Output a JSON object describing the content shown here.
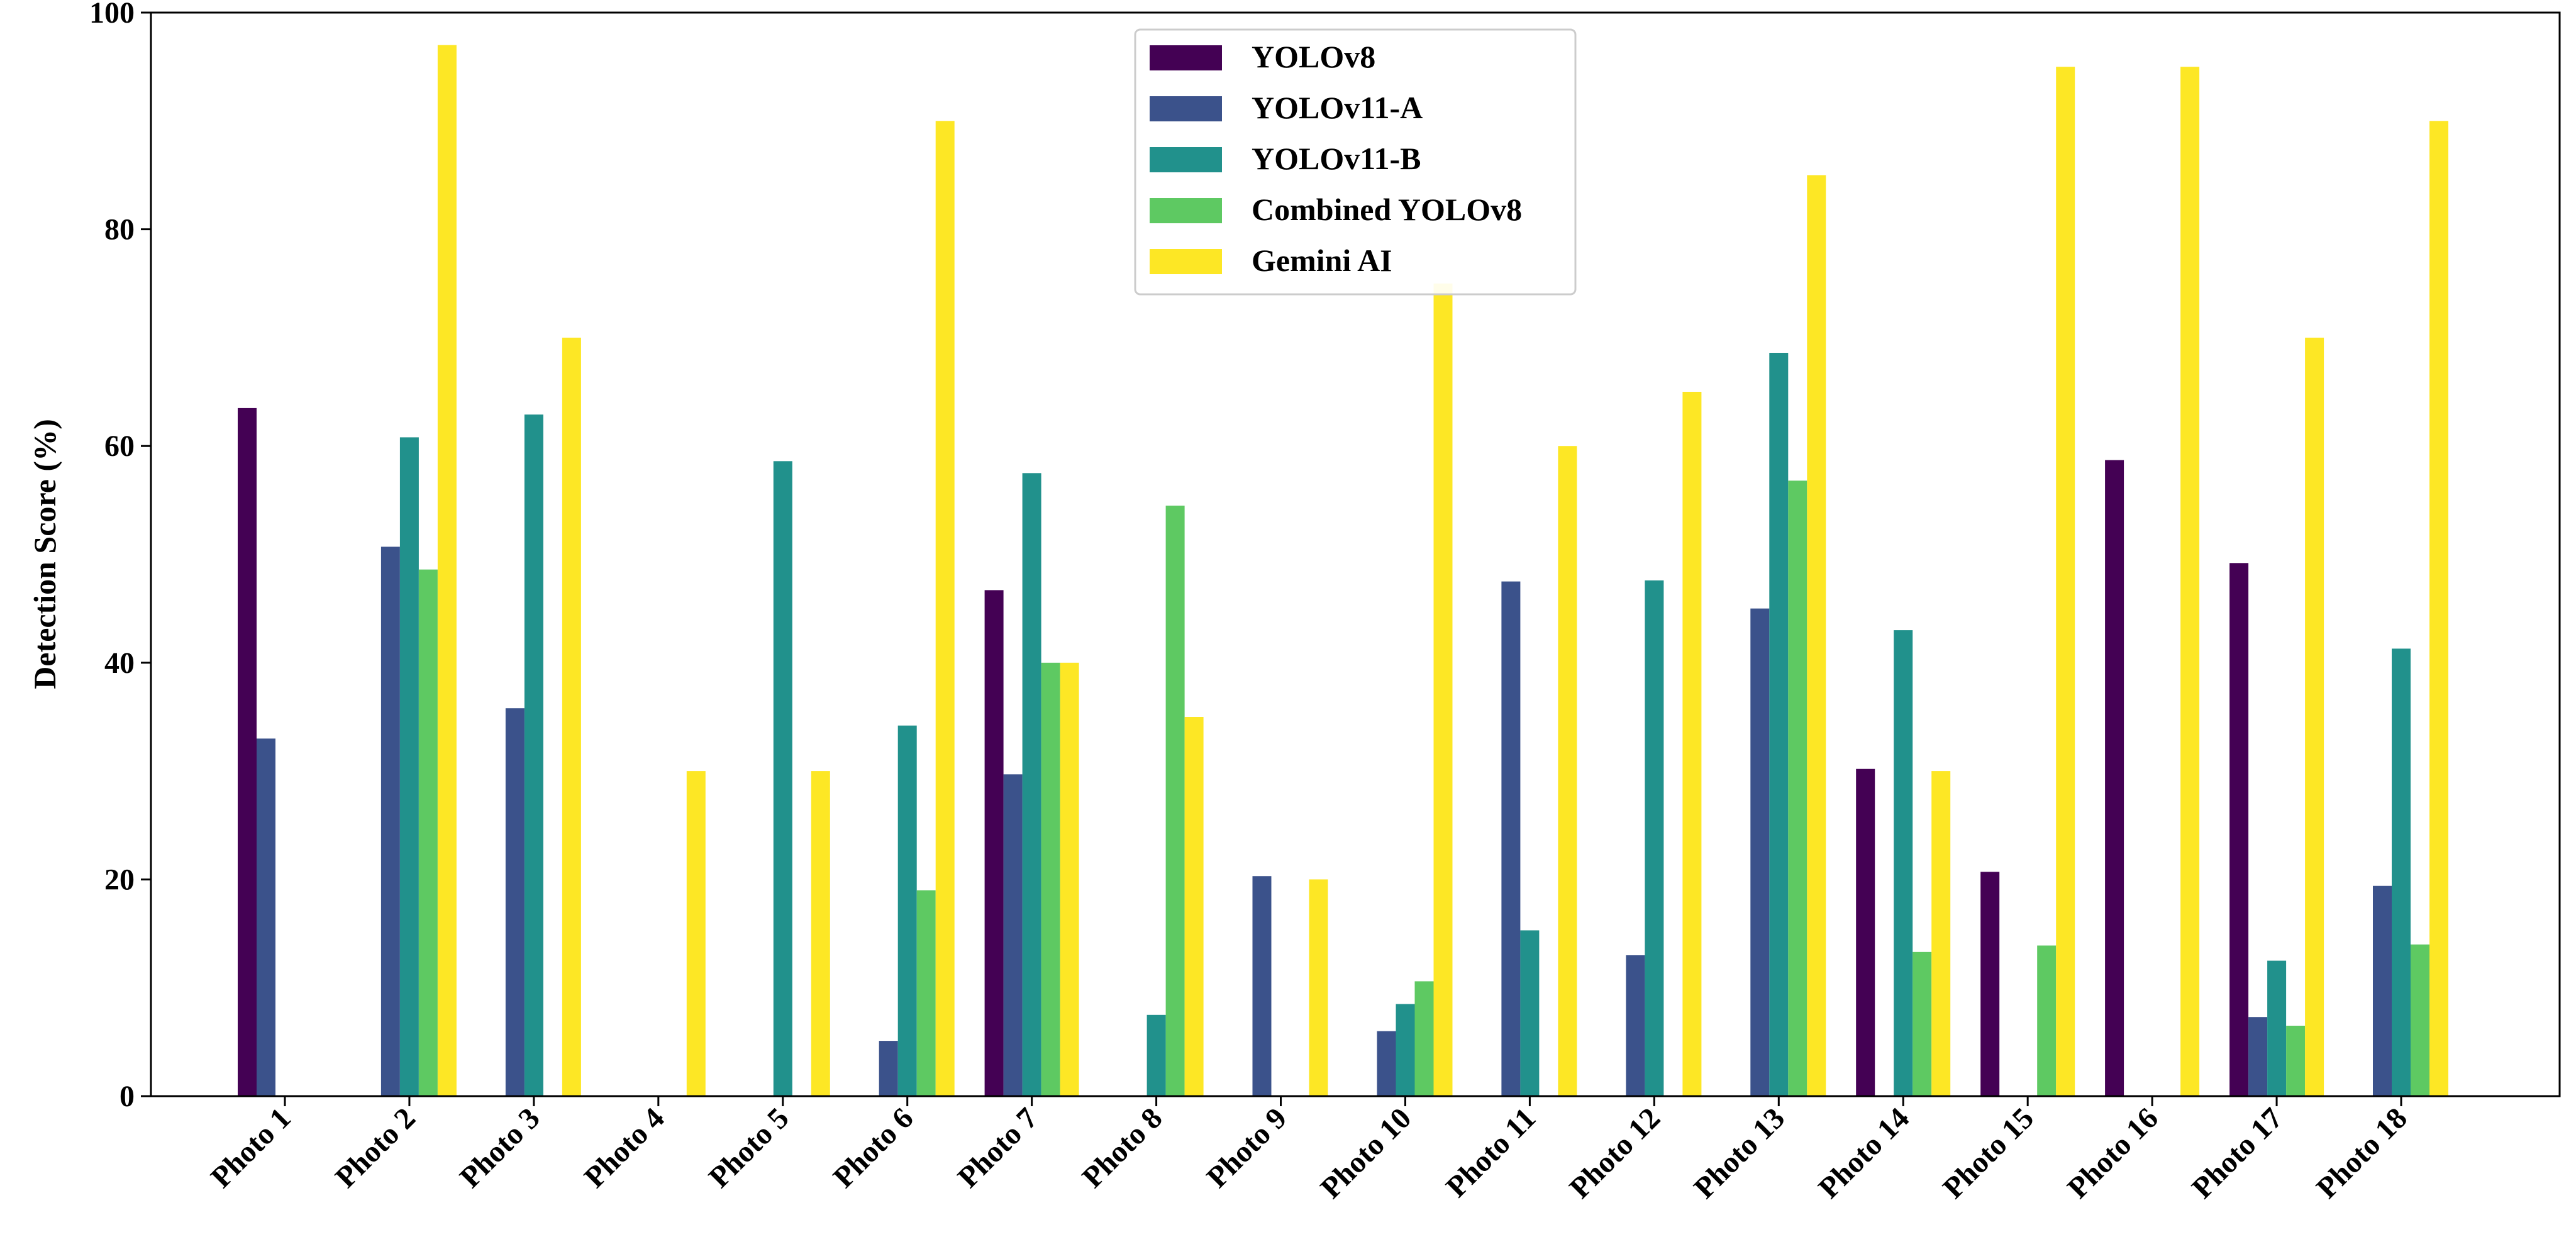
{
  "chart_data": {
    "type": "bar",
    "title": "",
    "xlabel": "",
    "ylabel": "Detection Score (%)",
    "ylim": [
      0,
      100
    ],
    "yticks": [
      0,
      20,
      40,
      60,
      80,
      100
    ],
    "grid": false,
    "legend_position": "top-center",
    "categories": [
      "Photo 1",
      "Photo 2",
      "Photo 3",
      "Photo 4",
      "Photo 5",
      "Photo 6",
      "Photo 7",
      "Photo 8",
      "Photo 9",
      "Photo 10",
      "Photo 11",
      "Photo 12",
      "Photo 13",
      "Photo 14",
      "Photo 15",
      "Photo 16",
      "Photo 17",
      "Photo 18"
    ],
    "series": [
      {
        "name": "YOLOv8",
        "color": "#440154",
        "values": [
          63.5,
          0,
          0,
          0,
          0,
          0,
          46.7,
          0,
          0,
          0,
          0,
          0,
          0,
          30.2,
          20.7,
          58.7,
          49.2,
          0
        ]
      },
      {
        "name": "YOLOv11-A",
        "color": "#3b528b",
        "values": [
          33,
          50.7,
          35.8,
          0,
          0,
          5.1,
          29.7,
          0,
          20.3,
          6,
          47.5,
          13,
          45,
          0,
          0,
          0,
          7.3,
          19.4
        ]
      },
      {
        "name": "YOLOv11-B",
        "color": "#21918c",
        "values": [
          0,
          60.8,
          62.9,
          0,
          58.6,
          34.2,
          57.5,
          7.5,
          0,
          8.5,
          15.3,
          47.6,
          68.6,
          43,
          0,
          0,
          12.5,
          41.3
        ]
      },
      {
        "name": "Combined YOLOv8",
        "color": "#5ec962",
        "values": [
          0,
          48.6,
          0,
          0,
          0,
          19,
          40,
          54.5,
          0,
          10.6,
          0,
          0,
          56.8,
          13.3,
          13.9,
          0,
          6.5,
          14
        ]
      },
      {
        "name": "Gemini AI",
        "color": "#fde725",
        "values": [
          0,
          97,
          70,
          30,
          30,
          90,
          40,
          35,
          20,
          75,
          60,
          65,
          85,
          30,
          95,
          95,
          70,
          90
        ]
      }
    ]
  }
}
